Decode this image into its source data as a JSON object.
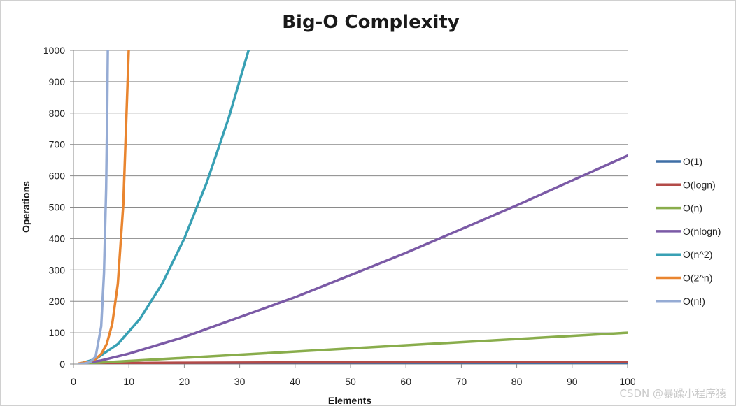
{
  "chart_data": {
    "type": "line",
    "title": "Big-O Complexity",
    "xlabel": "Elements",
    "ylabel": "Operations",
    "xlim": [
      0,
      100
    ],
    "ylim": [
      0,
      1000
    ],
    "xticks": [
      "0",
      "10",
      "20",
      "30",
      "40",
      "50",
      "60",
      "70",
      "80",
      "90",
      "100"
    ],
    "yticks": [
      "0",
      "100",
      "200",
      "300",
      "400",
      "500",
      "600",
      "700",
      "800",
      "900",
      "1000"
    ],
    "grid": "horizontal",
    "legend_position": "right",
    "series": [
      {
        "name": "O(1)",
        "color": "#3f6fa6",
        "x": [
          1,
          100
        ],
        "y": [
          1,
          1
        ]
      },
      {
        "name": "O(logn)",
        "color": "#b34b48",
        "x": [
          1,
          10,
          20,
          40,
          60,
          80,
          100
        ],
        "y": [
          0,
          3.3,
          4.3,
          5.3,
          5.9,
          6.3,
          6.6
        ]
      },
      {
        "name": "O(n)",
        "color": "#89ad4c",
        "x": [
          1,
          100
        ],
        "y": [
          1,
          100
        ]
      },
      {
        "name": "O(nlogn)",
        "color": "#7b5aa6",
        "x": [
          1,
          5,
          10,
          20,
          40,
          60,
          80,
          100
        ],
        "y": [
          0,
          11.6,
          33.2,
          86.4,
          212.9,
          354.4,
          505.8,
          664.4
        ]
      },
      {
        "name": "O(n^2)",
        "color": "#38a0b4",
        "x": [
          1,
          4,
          8,
          12,
          16,
          20,
          24,
          28,
          31.6
        ],
        "y": [
          1,
          16,
          64,
          144,
          256,
          400,
          576,
          784,
          1000
        ]
      },
      {
        "name": "O(2^n)",
        "color": "#e9852f",
        "x": [
          1,
          3,
          4,
          5,
          6,
          7,
          8,
          9,
          9.97
        ],
        "y": [
          2,
          8,
          16,
          32,
          64,
          128,
          256,
          512,
          1000
        ]
      },
      {
        "name": "O(n!)",
        "color": "#95abd4",
        "x": [
          1,
          2,
          3,
          4,
          5,
          5.5,
          5.9,
          6.1,
          6.2
        ],
        "y": [
          1,
          2,
          6,
          24,
          120,
          290,
          560,
          820,
          1000
        ]
      }
    ]
  },
  "watermark": "CSDN @暴躁小程序猿"
}
